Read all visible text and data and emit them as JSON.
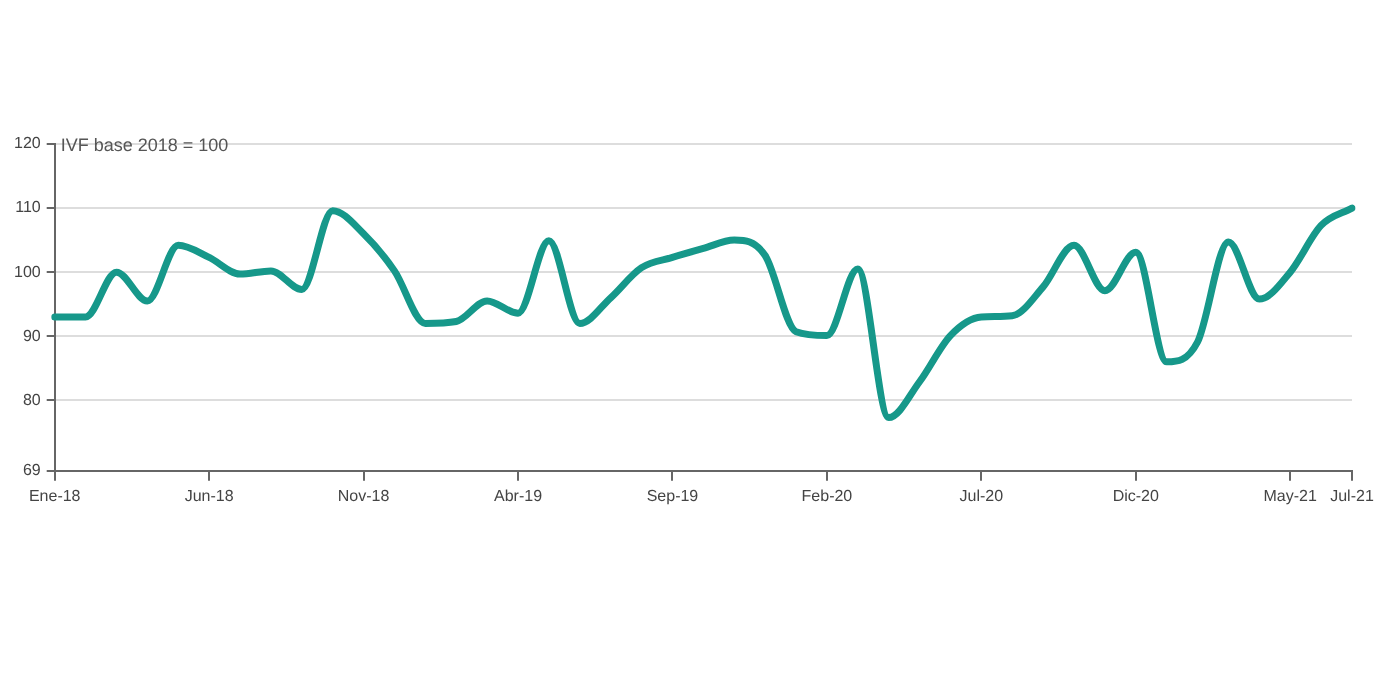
{
  "chart_data": {
    "type": "line",
    "ylabel": "IVF base 2018 = 100",
    "categories": [
      "Ene-18",
      null,
      null,
      null,
      null,
      "Jun-18",
      null,
      null,
      null,
      null,
      "Nov-18",
      null,
      null,
      null,
      null,
      "Abr-19",
      null,
      null,
      null,
      null,
      "Sep-19",
      null,
      null,
      null,
      null,
      "Feb-20",
      null,
      null,
      null,
      null,
      "Jul-20",
      null,
      null,
      null,
      null,
      "Dic-20",
      null,
      null,
      null,
      null,
      "May-21",
      null,
      "Jul-21"
    ],
    "series": [
      {
        "color": "#16988a",
        "values": [
          93,
          93,
          100,
          95.5,
          104.2,
          102.3,
          99.7,
          100.2,
          97.3,
          109.6,
          106,
          100.2,
          92,
          92.3,
          95.5,
          93.6,
          104.9,
          92,
          96,
          100.7,
          102.3,
          103.7,
          105,
          102.6,
          90.7,
          90.1,
          100.5,
          77.3,
          82.9,
          90.1,
          93,
          93.2,
          97.7,
          104.2,
          97.1,
          103.1,
          86,
          89.1,
          104.7,
          95.8,
          100,
          107.3,
          110
        ]
      }
    ],
    "ylim": [
      69,
      120
    ],
    "yticks": [
      69,
      80,
      90,
      100,
      110,
      120
    ],
    "grid": "y",
    "legend": false,
    "marker": "none",
    "line_style": "solid"
  }
}
